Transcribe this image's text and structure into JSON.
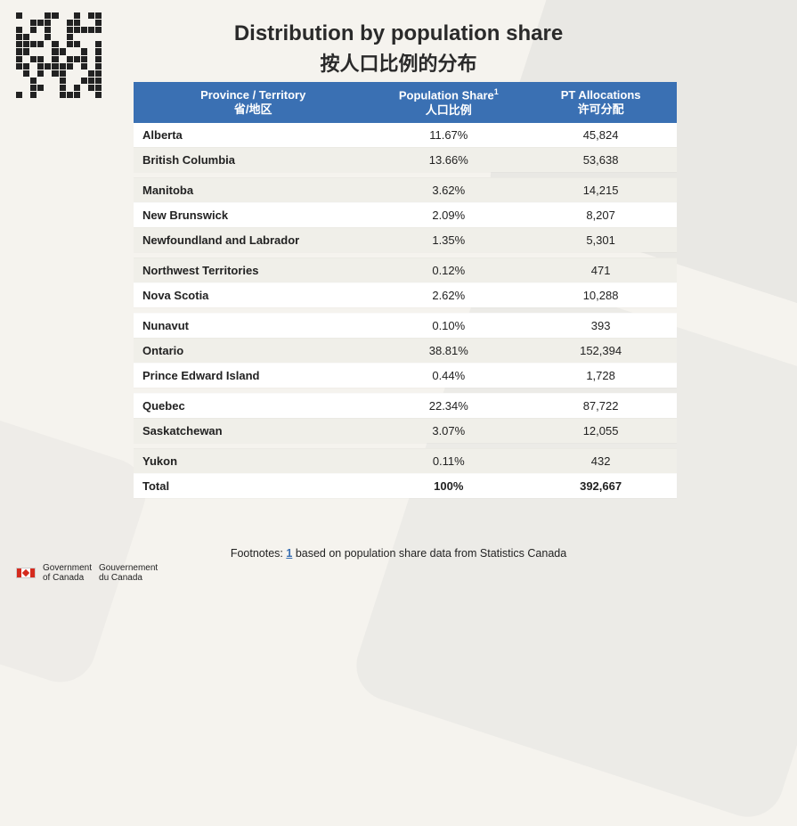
{
  "title": {
    "en": "Distribution by population share",
    "zh": "按人口比例的分布"
  },
  "headers": {
    "province": {
      "en": "Province / Territory",
      "zh": "省/地区"
    },
    "share": {
      "en": "Population Share",
      "zh": "人口比例"
    },
    "alloc": {
      "en": "PT Allocations",
      "zh": "许可分配"
    }
  },
  "rows": [
    {
      "name": "Alberta",
      "share": "11.67%",
      "alloc": "45,824"
    },
    {
      "name": "British Columbia",
      "share": "13.66%",
      "alloc": "53,638"
    },
    {
      "name": "Manitoba",
      "share": "3.62%",
      "alloc": "14,215"
    },
    {
      "name": "New Brunswick",
      "share": "2.09%",
      "alloc": "8,207"
    },
    {
      "name": "Newfoundland and Labrador",
      "share": "1.35%",
      "alloc": "5,301"
    },
    {
      "name": "Northwest Territories",
      "share": "0.12%",
      "alloc": "471"
    },
    {
      "name": "Nova Scotia",
      "share": "2.62%",
      "alloc": "10,288"
    },
    {
      "name": "Nunavut",
      "share": "0.10%",
      "alloc": "393"
    },
    {
      "name": "Ontario",
      "share": "38.81%",
      "alloc": "152,394"
    },
    {
      "name": "Prince Edward Island",
      "share": "0.44%",
      "alloc": "1,728"
    },
    {
      "name": "Quebec",
      "share": "22.34%",
      "alloc": "87,722"
    },
    {
      "name": "Saskatchewan",
      "share": "3.07%",
      "alloc": "12,055"
    },
    {
      "name": "Yukon",
      "share": "0.11%",
      "alloc": "432"
    }
  ],
  "total": {
    "name": "Total",
    "share": "100%",
    "alloc": "392,667"
  },
  "footnote": {
    "label": "Footnotes:",
    "num": "1",
    "text": "based on population share data from Statistics Canada"
  },
  "gov": {
    "en1": "Government",
    "en2": "of Canada",
    "fr1": "Gouvernement",
    "fr2": "du Canada"
  },
  "colors": {
    "header_bg": "#3a70b3",
    "header_fg": "#ffffff",
    "row_odd_bg": "#ffffff",
    "row_even_bg": "#f0efe9",
    "page_bg": "#f5f3ee",
    "text": "#222222",
    "flag_red": "#d52b1e"
  }
}
